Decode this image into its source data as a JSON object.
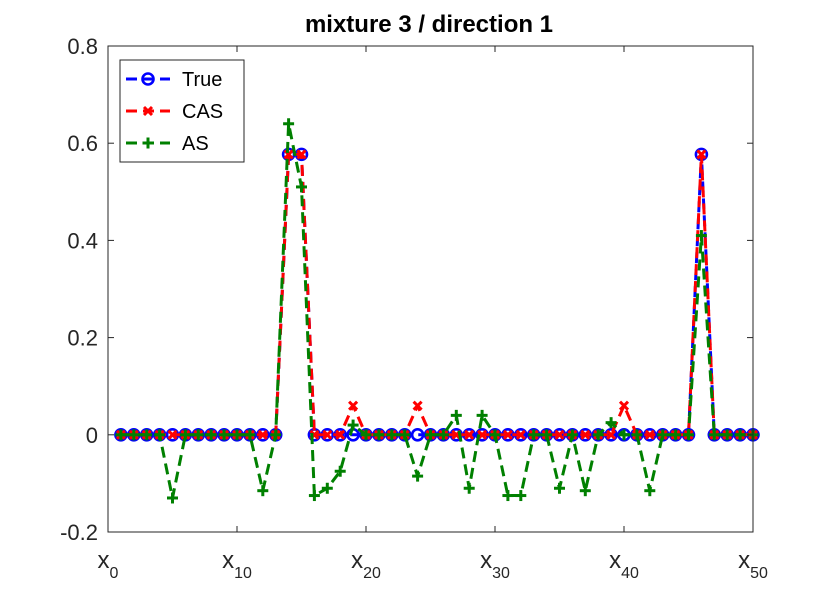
{
  "chart_data": {
    "type": "line",
    "title": "mixture 3 / direction 1",
    "xlabel": "",
    "ylabel": "",
    "xlim": [
      0,
      50
    ],
    "ylim": [
      -0.2,
      0.8
    ],
    "grid": false,
    "legend_position": "top-left",
    "y_ticks": [
      "-0.2",
      "0",
      "0.2",
      "0.4",
      "0.6",
      "0.8"
    ],
    "x_ticks": [
      {
        "main": "x",
        "sub": "0",
        "value": 0
      },
      {
        "main": "x",
        "sub": "10",
        "value": 10
      },
      {
        "main": "x",
        "sub": "20",
        "value": 20
      },
      {
        "main": "x",
        "sub": "30",
        "value": 30
      },
      {
        "main": "x",
        "sub": "40",
        "value": 40
      },
      {
        "main": "x",
        "sub": "50",
        "value": 50
      }
    ],
    "x": [
      1,
      2,
      3,
      4,
      5,
      6,
      7,
      8,
      9,
      10,
      11,
      12,
      13,
      14,
      15,
      16,
      17,
      18,
      19,
      20,
      21,
      22,
      23,
      24,
      25,
      26,
      27,
      28,
      29,
      30,
      31,
      32,
      33,
      34,
      35,
      36,
      37,
      38,
      39,
      40,
      41,
      42,
      43,
      44,
      45,
      46,
      47,
      48,
      49,
      50
    ],
    "series": [
      {
        "name": "True",
        "color": "#0000ff",
        "marker": "circle",
        "values": [
          0,
          0,
          0,
          0,
          0,
          0,
          0,
          0,
          0,
          0,
          0,
          0,
          0,
          0.577,
          0.577,
          0,
          0,
          0,
          0,
          0,
          0,
          0,
          0,
          0,
          0,
          0,
          0,
          0,
          0,
          0,
          0,
          0,
          0,
          0,
          0,
          0,
          0,
          0,
          0,
          0,
          0,
          0,
          0,
          0,
          0,
          0.577,
          0,
          0,
          0,
          0
        ]
      },
      {
        "name": "CAS",
        "color": "#ff0000",
        "marker": "x",
        "values": [
          0,
          0,
          0,
          0,
          0,
          0,
          0,
          0,
          0,
          0,
          0,
          0,
          0,
          0.577,
          0.577,
          0,
          0,
          0,
          0.06,
          0,
          0,
          0,
          0,
          0.06,
          0,
          0,
          0,
          0,
          0,
          0,
          0,
          0,
          0,
          0,
          0,
          0,
          0,
          0,
          0,
          0.06,
          0,
          0,
          0,
          0,
          0,
          0.577,
          0,
          0,
          0,
          0
        ]
      },
      {
        "name": "AS",
        "color": "#008000",
        "marker": "plus",
        "values": [
          0,
          0,
          0,
          0,
          -0.13,
          0,
          0,
          0,
          0,
          0,
          0,
          -0.115,
          0,
          0.64,
          0.51,
          -0.125,
          -0.11,
          -0.075,
          0.02,
          0,
          0,
          0,
          0,
          -0.085,
          0,
          0,
          0.04,
          -0.11,
          0.04,
          0,
          -0.125,
          -0.125,
          0,
          0,
          -0.11,
          0,
          -0.115,
          0,
          0.025,
          0,
          0,
          -0.115,
          0,
          0,
          0,
          0.41,
          0,
          0,
          0,
          0
        ]
      }
    ]
  }
}
